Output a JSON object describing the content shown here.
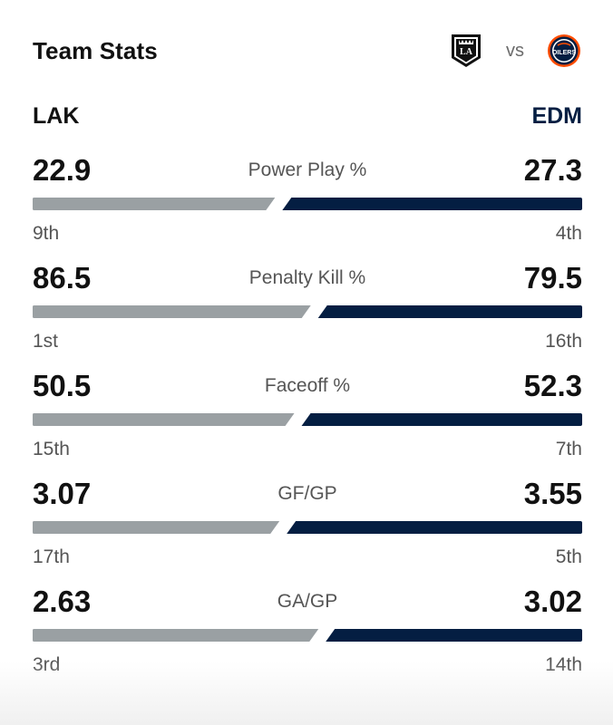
{
  "header": {
    "title": "Team Stats",
    "vs": "vs",
    "left_logo_icon": "kings-logo-icon",
    "right_logo_icon": "oilers-logo-icon"
  },
  "teams": {
    "left": "LAK",
    "right": "EDM"
  },
  "colors": {
    "left_bar": "#9aa0a3",
    "right_bar": "#041e42",
    "right_team_text": "#041e42"
  },
  "stats": [
    {
      "label": "Power Play %",
      "left_value": "22.9",
      "right_value": "27.3",
      "left_rank": "9th",
      "right_rank": "4th",
      "left_share": 0.456
    },
    {
      "label": "Penalty Kill %",
      "left_value": "86.5",
      "right_value": "79.5",
      "left_rank": "1st",
      "right_rank": "16th",
      "left_share": 0.521
    },
    {
      "label": "Faceoff %",
      "left_value": "50.5",
      "right_value": "52.3",
      "left_rank": "15th",
      "right_rank": "7th",
      "left_share": 0.491
    },
    {
      "label": "GF/GP",
      "left_value": "3.07",
      "right_value": "3.55",
      "left_rank": "17th",
      "right_rank": "5th",
      "left_share": 0.464
    },
    {
      "label": "GA/GP",
      "left_value": "2.63",
      "right_value": "3.02",
      "left_rank": "3rd",
      "right_rank": "14th",
      "left_share": 0.535
    }
  ]
}
